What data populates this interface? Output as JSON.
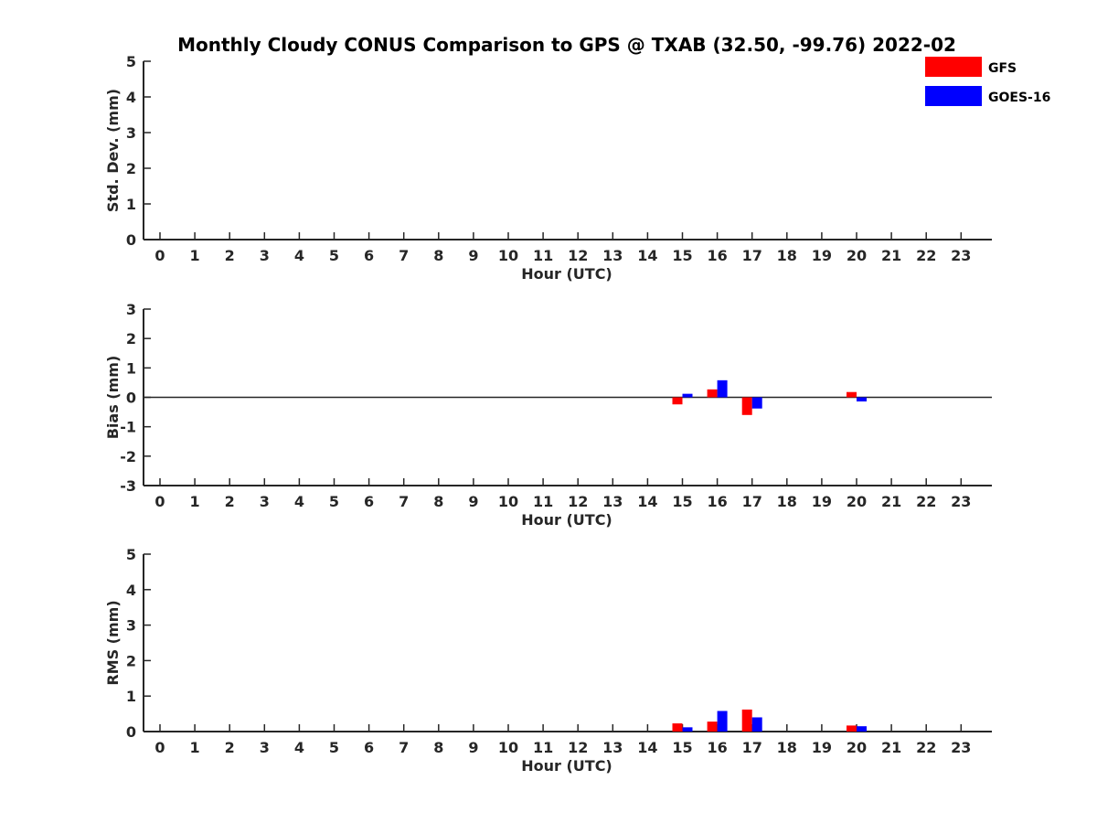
{
  "title": "Monthly Cloudy CONUS Comparison to GPS @ TXAB (32.50, -99.76) 2022-02",
  "legend": {
    "placement": "top-right",
    "items": [
      {
        "label": "GFS",
        "color": "#ff0000"
      },
      {
        "label": "GOES-16",
        "color": "#0000ff"
      }
    ]
  },
  "chart_data": [
    {
      "type": "bar",
      "ylabel": "Std. Dev. (mm)",
      "xlabel": "Hour (UTC)",
      "ylim": [
        0,
        5
      ],
      "yticks": [
        "0",
        "1",
        "2",
        "3",
        "4",
        "5"
      ],
      "xticks": [
        "0",
        "1",
        "2",
        "3",
        "4",
        "5",
        "6",
        "7",
        "8",
        "9",
        "10",
        "11",
        "12",
        "13",
        "14",
        "15",
        "16",
        "17",
        "18",
        "19",
        "20",
        "21",
        "22",
        "23"
      ],
      "zero_line": false,
      "series": [
        {
          "name": "GFS",
          "color": "#ff0000",
          "values": [
            null,
            null,
            null,
            null,
            null,
            null,
            null,
            null,
            null,
            null,
            null,
            null,
            null,
            null,
            null,
            null,
            null,
            null,
            null,
            null,
            null,
            null,
            null,
            null
          ]
        },
        {
          "name": "GOES-16",
          "color": "#0000ff",
          "values": [
            null,
            null,
            null,
            null,
            null,
            null,
            null,
            null,
            null,
            null,
            null,
            null,
            null,
            null,
            null,
            null,
            null,
            null,
            null,
            null,
            null,
            null,
            null,
            null
          ]
        }
      ]
    },
    {
      "type": "bar",
      "ylabel": "Bias (mm)",
      "xlabel": "Hour (UTC)",
      "ylim": [
        -3,
        3
      ],
      "yticks": [
        "-3",
        "-2",
        "-1",
        "0",
        "1",
        "2",
        "3"
      ],
      "xticks": [
        "0",
        "1",
        "2",
        "3",
        "4",
        "5",
        "6",
        "7",
        "8",
        "9",
        "10",
        "11",
        "12",
        "13",
        "14",
        "15",
        "16",
        "17",
        "18",
        "19",
        "20",
        "21",
        "22",
        "23"
      ],
      "zero_line": true,
      "series": [
        {
          "name": "GFS",
          "color": "#ff0000",
          "values": [
            null,
            null,
            null,
            null,
            null,
            null,
            null,
            null,
            null,
            null,
            null,
            null,
            null,
            null,
            null,
            -0.24,
            0.27,
            -0.6,
            null,
            null,
            0.18,
            null,
            null,
            null
          ]
        },
        {
          "name": "GOES-16",
          "color": "#0000ff",
          "values": [
            null,
            null,
            null,
            null,
            null,
            null,
            null,
            null,
            null,
            null,
            null,
            null,
            null,
            null,
            null,
            0.12,
            0.58,
            -0.38,
            null,
            null,
            -0.14,
            null,
            null,
            null
          ]
        }
      ]
    },
    {
      "type": "bar",
      "ylabel": "RMS (mm)",
      "xlabel": "Hour (UTC)",
      "ylim": [
        0,
        5
      ],
      "yticks": [
        "0",
        "1",
        "2",
        "3",
        "4",
        "5"
      ],
      "xticks": [
        "0",
        "1",
        "2",
        "3",
        "4",
        "5",
        "6",
        "7",
        "8",
        "9",
        "10",
        "11",
        "12",
        "13",
        "14",
        "15",
        "16",
        "17",
        "18",
        "19",
        "20",
        "21",
        "22",
        "23"
      ],
      "zero_line": false,
      "series": [
        {
          "name": "GFS",
          "color": "#ff0000",
          "values": [
            null,
            null,
            null,
            null,
            null,
            null,
            null,
            null,
            null,
            null,
            null,
            null,
            null,
            null,
            null,
            0.23,
            0.28,
            0.62,
            null,
            null,
            0.17,
            null,
            null,
            null
          ]
        },
        {
          "name": "GOES-16",
          "color": "#0000ff",
          "values": [
            null,
            null,
            null,
            null,
            null,
            null,
            null,
            null,
            null,
            null,
            null,
            null,
            null,
            null,
            null,
            0.12,
            0.58,
            0.4,
            null,
            null,
            0.15,
            null,
            null,
            null
          ]
        }
      ]
    }
  ]
}
